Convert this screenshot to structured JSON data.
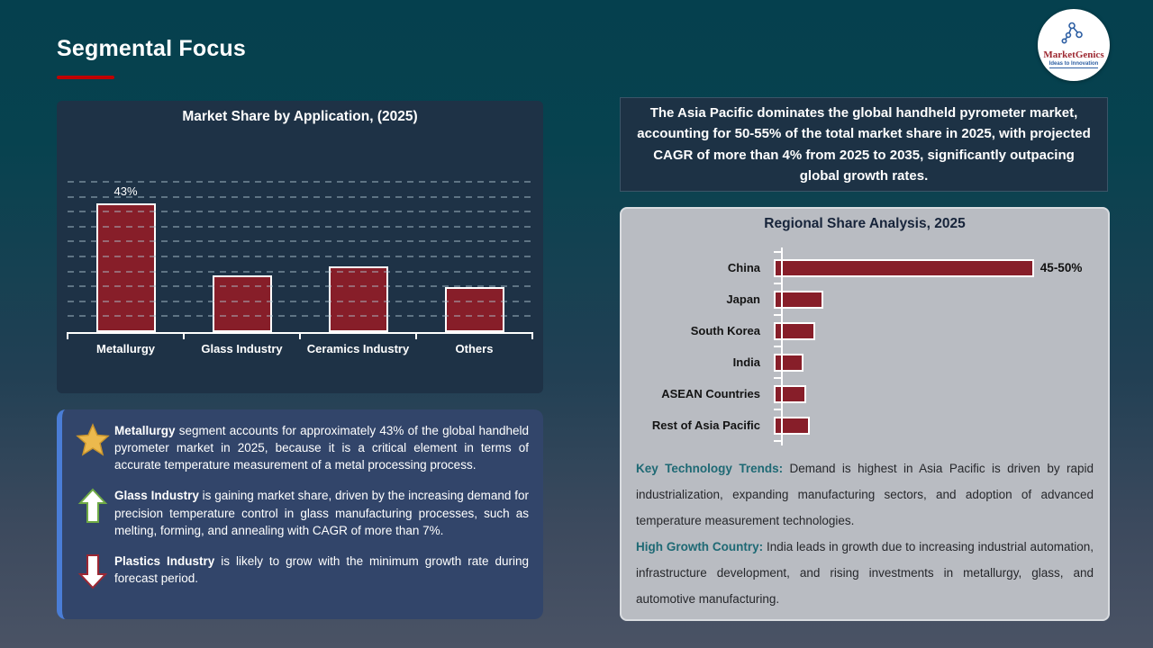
{
  "slide": {
    "title": "Segmental Focus",
    "logo": {
      "name": "MarketGenics",
      "tagline": "Ideas to Innovation"
    }
  },
  "headline_box": {
    "text": "The Asia Pacific dominates the global handheld pyrometer market, accounting for 50-55% of the total market share in 2025, with projected CAGR of more than 4% from 2025 to 2035, significantly outpacing global growth rates."
  },
  "insights": {
    "items": [
      {
        "icon": "star",
        "bold": "Metallurgy",
        "text": " segment accounts for approximately 43% of the global handheld pyrometer market in 2025, because it is a critical element in terms of accurate temperature measurement of a metal processing process."
      },
      {
        "icon": "up-arrow",
        "bold": "Glass Industry",
        "text": " is gaining market share, driven by the increasing demand for precision temperature control in glass manufacturing processes, such as melting, forming, and annealing with CAGR of more than 7%."
      },
      {
        "icon": "down-arrow",
        "bold": "Plastics Industry",
        "text": " is likely to grow with the minimum growth rate during forecast period."
      }
    ]
  },
  "regional_notes": [
    {
      "lead": "Key Technology Trends:",
      "text": " Demand is highest in Asia Pacific is driven by rapid industrialization, expanding manufacturing sectors, and adoption of advanced temperature measurement technologies."
    },
    {
      "lead": "High Growth Country:",
      "text": " India leads in growth due to increasing industrial automation, infrastructure development, and rising investments in metallurgy, glass, and automotive manufacturing."
    }
  ],
  "chart_data": [
    {
      "type": "bar",
      "title": "Market Share by Application, (2025)",
      "categories": [
        "Metallurgy",
        "Glass Industry",
        "Ceramics Industry",
        "Others"
      ],
      "values": [
        43,
        19,
        22,
        15
      ],
      "data_labels": [
        "43%",
        "",
        "",
        ""
      ],
      "ylabel": "",
      "xlabel": "",
      "ylim": [
        0,
        50
      ],
      "gridline_step": 5,
      "grid": true,
      "legend": "none",
      "bar_color": "#871e29"
    },
    {
      "type": "bar-horizontal",
      "title": "Regional Share Analysis, 2025",
      "categories": [
        "China",
        "Japan",
        "South Korea",
        "India",
        "ASEAN Countries",
        "Rest of Asia Pacific"
      ],
      "values": [
        47.5,
        9,
        7.5,
        5.5,
        6,
        6.5
      ],
      "data_labels": [
        "45-50%",
        "",
        "",
        "",
        "",
        ""
      ],
      "xlim": [
        0,
        50
      ],
      "grid": false,
      "legend": "none",
      "bar_color": "#871e29"
    }
  ],
  "colors": {
    "accent_red": "#c00000",
    "bar_red": "#871e29",
    "panel_navy": "#1e3246",
    "insight_navy": "#32456a",
    "insight_stripe": "#4a7dd6",
    "gray_panel": "#b9bcc2",
    "teal_lead": "#1e6974"
  }
}
